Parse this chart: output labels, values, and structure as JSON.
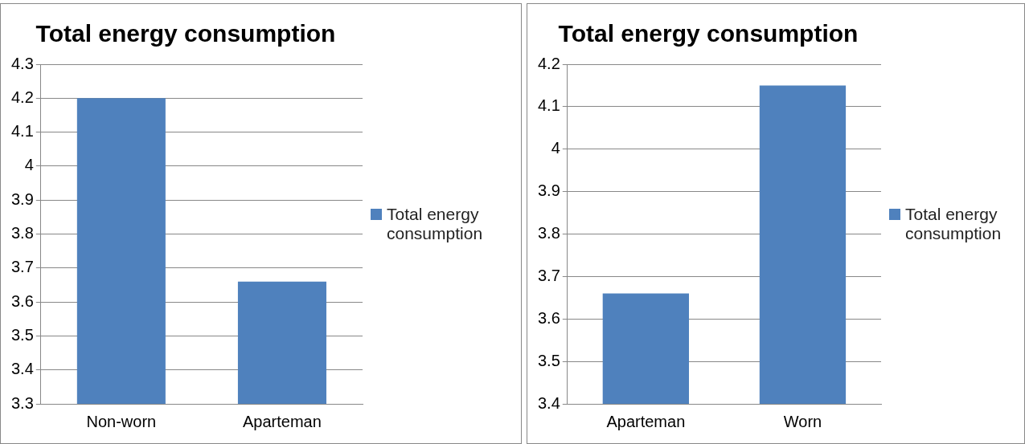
{
  "chart_data": [
    {
      "type": "bar",
      "title": "Total energy consumption",
      "categories": [
        "Non-worn",
        "Aparteman"
      ],
      "series": [
        {
          "name": "Total energy consumption",
          "color": "#4f81bd",
          "values": [
            4.2,
            3.66
          ]
        }
      ],
      "ylim": [
        3.3,
        4.3
      ],
      "yticks": [
        3.3,
        3.4,
        3.5,
        3.6,
        3.7,
        3.8,
        3.9,
        4,
        4.1,
        4.2,
        4.3
      ],
      "grid": "y",
      "legend": "right"
    },
    {
      "type": "bar",
      "title": "Total energy consumption",
      "categories": [
        "Aparteman",
        "Worn"
      ],
      "series": [
        {
          "name": "Total energy consumption",
          "color": "#4f81bd",
          "values": [
            3.66,
            4.15
          ]
        }
      ],
      "ylim": [
        3.4,
        4.2
      ],
      "yticks": [
        3.4,
        3.5,
        3.6,
        3.7,
        3.8,
        3.9,
        4,
        4.1,
        4.2
      ],
      "grid": "y",
      "legend": "right"
    }
  ]
}
